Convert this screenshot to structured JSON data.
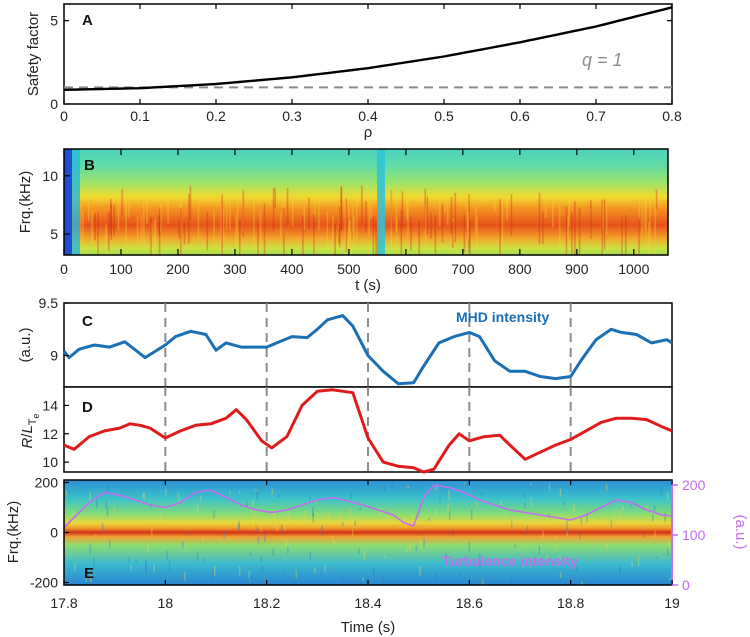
{
  "chart_data": [
    {
      "panel": "A",
      "type": "line",
      "xlabel": "ρ",
      "ylabel": "Safety factor",
      "xlim": [
        0,
        0.8
      ],
      "ylim": [
        0,
        6
      ],
      "xticks": [
        "0",
        "0.1",
        "0.2",
        "0.3",
        "0.4",
        "0.5",
        "0.6",
        "0.7",
        "0.8"
      ],
      "yticks": [
        "0",
        "5"
      ],
      "annotation": "q = 1",
      "series": [
        {
          "name": "safety factor",
          "x": [
            0,
            0.1,
            0.2,
            0.3,
            0.4,
            0.5,
            0.6,
            0.7,
            0.8
          ],
          "values": [
            0.85,
            0.95,
            1.2,
            1.6,
            2.15,
            2.85,
            3.7,
            4.65,
            5.8
          ]
        },
        {
          "name": "q = 1 reference",
          "x": [
            0,
            0.8
          ],
          "values": [
            1,
            1
          ]
        }
      ]
    },
    {
      "panel": "B",
      "type": "heatmap",
      "xlabel": "t (s)",
      "ylabel": "Frq.(kHz)",
      "xlim": [
        0,
        1060
      ],
      "ylim": [
        3.2,
        12.3
      ],
      "xticks": [
        "0",
        "100",
        "200",
        "300",
        "400",
        "500",
        "600",
        "700",
        "800",
        "900",
        "1000"
      ],
      "yticks": [
        "5",
        "10"
      ],
      "description_values": {
        "band_center_khz": 5.8,
        "dropout_t_s": 555
      }
    },
    {
      "panel": "C",
      "type": "line",
      "ylabel": "(a.u.)",
      "ylim": [
        8.7,
        9.5
      ],
      "yticks": [
        "9",
        "9.5"
      ],
      "legend": "MHD intensity",
      "series": [
        {
          "name": "MHD intensity",
          "x": [
            17.8,
            17.81,
            17.83,
            17.86,
            17.89,
            17.92,
            17.96,
            18.0,
            18.02,
            18.05,
            18.08,
            18.1,
            18.12,
            18.15,
            18.18,
            18.2,
            18.22,
            18.25,
            18.28,
            18.3,
            18.32,
            18.35,
            18.37,
            18.4,
            18.43,
            18.46,
            18.49,
            18.51,
            18.54,
            18.57,
            18.6,
            18.62,
            18.65,
            18.68,
            18.71,
            18.74,
            18.77,
            18.8,
            18.82,
            18.85,
            18.88,
            18.9,
            18.93,
            18.96,
            18.99,
            19.0
          ],
          "values": [
            9.04,
            8.98,
            9.06,
            9.1,
            9.08,
            9.13,
            8.98,
            9.1,
            9.18,
            9.23,
            9.2,
            9.05,
            9.12,
            9.08,
            9.08,
            9.08,
            9.12,
            9.18,
            9.17,
            9.25,
            9.34,
            9.38,
            9.28,
            9.0,
            8.85,
            8.73,
            8.74,
            8.9,
            9.12,
            9.18,
            9.22,
            9.18,
            8.95,
            8.85,
            8.85,
            8.8,
            8.78,
            8.8,
            8.95,
            9.15,
            9.25,
            9.22,
            9.2,
            9.12,
            9.15,
            9.12
          ]
        }
      ]
    },
    {
      "panel": "D",
      "type": "line",
      "ylabel": "R/LTe",
      "ylim": [
        9.3,
        15.3
      ],
      "yticks": [
        "10",
        "12",
        "14"
      ],
      "series": [
        {
          "name": "R/LTe",
          "x": [
            17.8,
            17.82,
            17.85,
            17.88,
            17.91,
            17.93,
            17.95,
            17.97,
            18.0,
            18.03,
            18.06,
            18.09,
            18.12,
            18.14,
            18.16,
            18.19,
            18.21,
            18.24,
            18.27,
            18.3,
            18.33,
            18.37,
            18.4,
            18.43,
            18.46,
            18.49,
            18.51,
            18.53,
            18.56,
            18.58,
            18.6,
            18.63,
            18.66,
            18.68,
            18.71,
            18.74,
            18.77,
            18.8,
            18.83,
            18.86,
            18.89,
            18.92,
            18.95,
            18.98,
            19.0
          ],
          "values": [
            11.2,
            10.9,
            11.8,
            12.2,
            12.4,
            12.7,
            12.6,
            12.4,
            11.7,
            12.2,
            12.6,
            12.7,
            13.1,
            13.7,
            13.0,
            11.5,
            11.0,
            11.8,
            14.0,
            15.0,
            15.1,
            14.9,
            11.7,
            10.0,
            9.7,
            9.6,
            9.3,
            9.5,
            11.2,
            12.0,
            11.5,
            11.8,
            11.9,
            11.2,
            10.2,
            10.7,
            11.2,
            11.6,
            12.2,
            12.8,
            13.1,
            13.1,
            13.0,
            12.5,
            12.2
          ]
        }
      ]
    },
    {
      "panel": "E",
      "type": "heatmap",
      "xlabel": "Time (s)",
      "ylabel": "Frq.(kHz)",
      "right_ylabel": "(a.u.)",
      "xlim": [
        17.8,
        19.0
      ],
      "ylim": [
        -210,
        210
      ],
      "right_ylim": [
        0,
        210
      ],
      "xticks": [
        "17.8",
        "18",
        "18.2",
        "18.4",
        "18.6",
        "18.8",
        "19"
      ],
      "yticks": [
        "200",
        "0",
        "-200"
      ],
      "right_yticks": [
        "200",
        "100",
        "0"
      ],
      "legend": "Turbulence intensity",
      "series": [
        {
          "name": "Turbulence intensity",
          "x": [
            17.8,
            17.82,
            17.85,
            17.88,
            17.91,
            17.94,
            17.97,
            18.0,
            18.03,
            18.06,
            18.09,
            18.12,
            18.15,
            18.18,
            18.21,
            18.24,
            18.27,
            18.3,
            18.33,
            18.36,
            18.39,
            18.42,
            18.45,
            18.47,
            18.49,
            18.51,
            18.53,
            18.56,
            18.59,
            18.62,
            18.65,
            18.68,
            18.71,
            18.74,
            18.77,
            18.8,
            18.83,
            18.86,
            18.89,
            18.92,
            18.95,
            18.98,
            19.0
          ],
          "values": [
            115,
            135,
            165,
            185,
            180,
            170,
            160,
            155,
            165,
            185,
            190,
            175,
            160,
            150,
            145,
            150,
            160,
            170,
            175,
            168,
            160,
            150,
            140,
            125,
            118,
            175,
            200,
            195,
            185,
            170,
            160,
            150,
            145,
            140,
            135,
            130,
            140,
            155,
            170,
            165,
            150,
            140,
            138
          ]
        }
      ]
    }
  ]
}
